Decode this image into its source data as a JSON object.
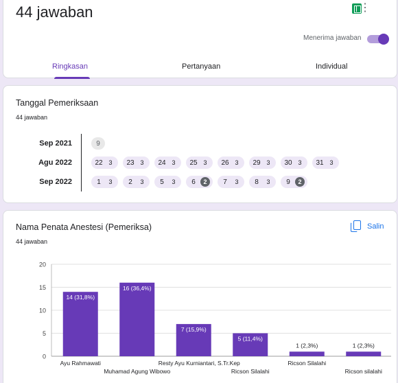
{
  "header": {
    "response_count": "44 jawaban",
    "accept_label": "Menerima jawaban",
    "accepting": true,
    "tabs": [
      {
        "label": "Ringkasan",
        "active": true
      },
      {
        "label": "Pertanyaan",
        "active": false
      },
      {
        "label": "Individual",
        "active": false
      }
    ],
    "sheets_icon": "google-sheets-icon",
    "more_icon": "more-vert-icon"
  },
  "dates_question": {
    "title": "Tanggal Pemeriksaan",
    "count": "44 jawaban",
    "rows": [
      {
        "month": "Sep 2021",
        "days": [
          {
            "day": "9",
            "count": ""
          }
        ]
      },
      {
        "month": "Agu 2022",
        "days": [
          {
            "day": "22",
            "count": "3"
          },
          {
            "day": "23",
            "count": "3"
          },
          {
            "day": "24",
            "count": "3"
          },
          {
            "day": "25",
            "count": "3"
          },
          {
            "day": "26",
            "count": "3"
          },
          {
            "day": "29",
            "count": "3"
          },
          {
            "day": "30",
            "count": "3"
          },
          {
            "day": "31",
            "count": "3"
          }
        ]
      },
      {
        "month": "Sep 2022",
        "days": [
          {
            "day": "1",
            "count": "3"
          },
          {
            "day": "2",
            "count": "3"
          },
          {
            "day": "5",
            "count": "3"
          },
          {
            "day": "6",
            "count": "2"
          },
          {
            "day": "7",
            "count": "3"
          },
          {
            "day": "8",
            "count": "3"
          },
          {
            "day": "9",
            "count": "2"
          }
        ]
      }
    ]
  },
  "chart_question": {
    "title": "Nama Penata Anestesi (Pemeriksa)",
    "count": "44 jawaban",
    "copy_label": "Salin",
    "copy_icon": "copy-icon"
  },
  "chart_data": {
    "type": "bar",
    "categories": [
      "Ayu Rahmawati",
      "Muhamad Agung Wibowo",
      "Resty Ayu Kurniantari, S.Tr.Kep",
      "Ricson Silalahi",
      "Ricson Silalahi",
      "Ricson silalahi"
    ],
    "values": [
      14,
      16,
      7,
      5,
      1,
      1
    ],
    "data_labels": [
      "14 (31,8%)",
      "16 (36,4%)",
      "7 (15,9%)",
      "5 (11,4%)",
      "1 (2,3%)",
      "1 (2,3%)"
    ],
    "ylim": [
      0,
      20
    ],
    "yticks": [
      "0",
      "5",
      "10",
      "15",
      "20"
    ],
    "grid": true,
    "bar_color": "#673ab7"
  }
}
